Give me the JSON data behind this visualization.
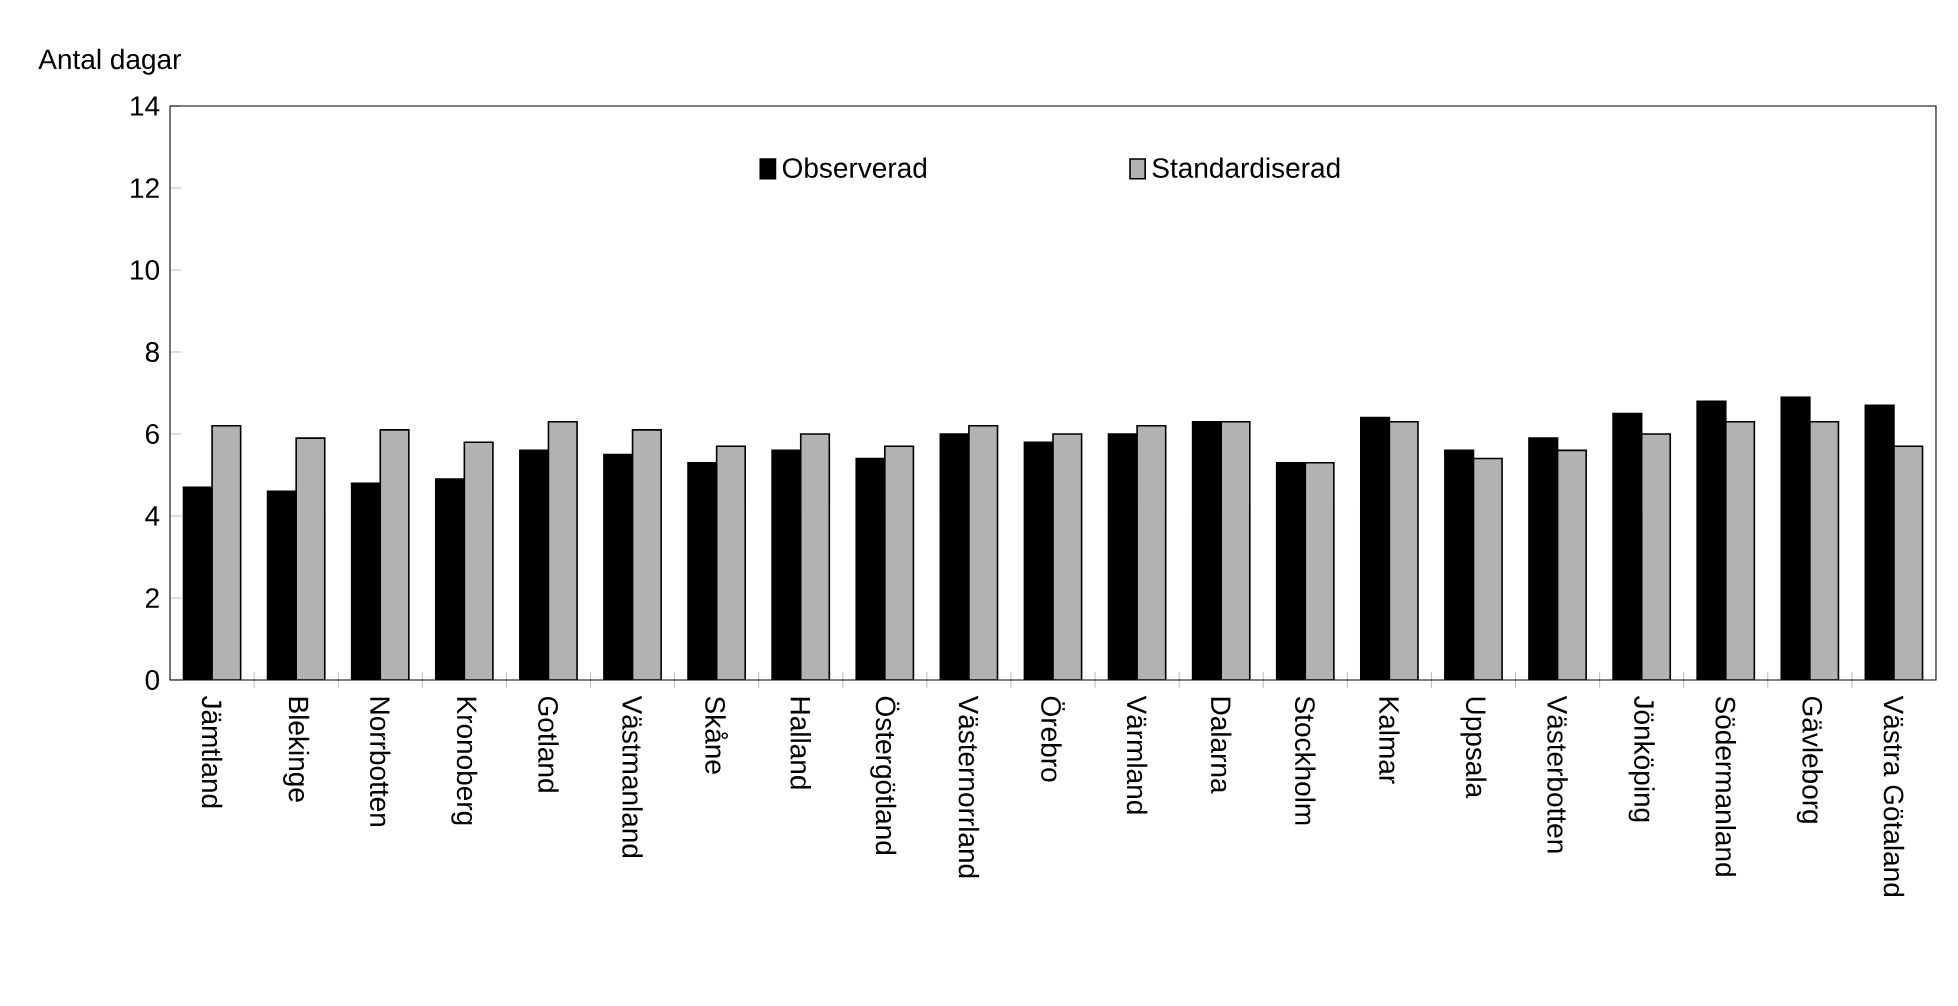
{
  "chart_data": {
    "type": "bar",
    "ylabel": "Antal dagar",
    "categories": [
      "Jämtland",
      "Blekinge",
      "Norrbotten",
      "Kronoberg",
      "Gotland",
      "Västmanland",
      "Skåne",
      "Halland",
      "Östergötland",
      "Västernorrland",
      "Örebro",
      "Värmland",
      "Dalarna",
      "Stockholm",
      "Kalmar",
      "Uppsala",
      "Västerbotten",
      "Jönköping",
      "Södermanland",
      "Gävleborg",
      "Västra Götaland"
    ],
    "series": [
      {
        "name": "Observerad",
        "color": "#000000",
        "values": [
          4.7,
          4.6,
          4.8,
          4.9,
          5.6,
          5.5,
          5.3,
          5.6,
          5.4,
          6.0,
          5.8,
          6.0,
          6.3,
          5.3,
          6.4,
          5.6,
          5.9,
          6.5,
          6.8,
          6.9,
          6.7
        ]
      },
      {
        "name": "Standardiserad",
        "color": "#b2b2b2",
        "values": [
          6.2,
          5.9,
          6.1,
          5.8,
          6.3,
          6.1,
          5.7,
          6.0,
          5.7,
          6.2,
          6.0,
          6.2,
          6.3,
          5.3,
          6.3,
          5.4,
          5.6,
          6.0,
          6.3,
          6.3,
          5.7
        ]
      }
    ],
    "ylim": [
      0,
      14
    ],
    "yticks": [
      0,
      2,
      4,
      6,
      8,
      10,
      12,
      14
    ],
    "legend": "top"
  }
}
